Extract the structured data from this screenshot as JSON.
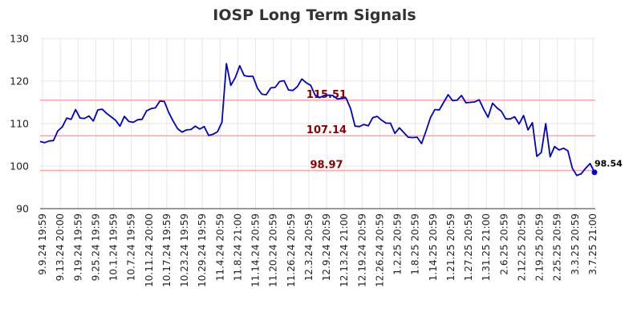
{
  "chart_data": {
    "type": "line",
    "title": "IOSP Long Term Signals",
    "ylim": [
      90,
      130
    ],
    "yticks": [
      90,
      100,
      110,
      120,
      130
    ],
    "grid": true,
    "x_tick_labels": [
      "9.9.24 19:59",
      "9.13.24 20:00",
      "9.19.24 19:59",
      "9.25.24 19:59",
      "10.1.24 19:59",
      "10.7.24 19:59",
      "10.11.24 20:00",
      "10.17.24 19:59",
      "10.23.24 19:59",
      "10.29.24 19:59",
      "11.4.24 20:59",
      "11.8.24 21:00",
      "11.14.24 20:59",
      "11.20.24 20:59",
      "11.26.24 20:59",
      "12.3.24 20:59",
      "12.9.24 20:59",
      "12.13.24 21:00",
      "12.19.24 20:59",
      "12.26.24 20:59",
      "1.2.25 20:59",
      "1.8.25 20:59",
      "1.14.25 20:59",
      "1.21.25 20:59",
      "1.27.25 20:59",
      "1.31.25 21:00",
      "2.6.25 20:59",
      "2.12.25 20:59",
      "2.19.25 20:59",
      "2.25.25 20:59",
      "3.3.25 20:59",
      "3.7.25 21:00"
    ],
    "series": [
      {
        "color": "#0000cc",
        "values": [
          105.8,
          105.5,
          105.9,
          106.0,
          108.3,
          109.2,
          111.3,
          111.0,
          113.3,
          111.3,
          111.2,
          111.8,
          110.6,
          113.2,
          113.4,
          112.4,
          111.6,
          110.8,
          109.4,
          111.7,
          110.5,
          110.3,
          110.9,
          111.0,
          113.0,
          113.5,
          113.7,
          115.3,
          115.2,
          112.6,
          110.6,
          108.8,
          108.0,
          108.5,
          108.6,
          109.4,
          108.7,
          109.3,
          107.2,
          107.5,
          108.1,
          110.3,
          124.1,
          119.0,
          120.8,
          123.6,
          121.3,
          121.1,
          121.1,
          118.3,
          116.9,
          116.8,
          118.4,
          118.5,
          119.9,
          120.1,
          117.9,
          117.8,
          118.7,
          120.5,
          119.6,
          119.0,
          116.7,
          116.1,
          116.6,
          116.7,
          116.6,
          115.8,
          115.9,
          116.0,
          113.5,
          109.4,
          109.3,
          109.8,
          109.5,
          111.4,
          111.7,
          110.8,
          110.1,
          110.1,
          107.7,
          109.0,
          107.9,
          106.8,
          106.7,
          106.8,
          105.3,
          108.2,
          111.4,
          113.3,
          113.2,
          115.0,
          116.8,
          115.4,
          115.5,
          116.6,
          114.9,
          115.0,
          115.1,
          115.6,
          113.4,
          111.5,
          114.8,
          113.7,
          112.9,
          111.1,
          111.1,
          111.6,
          109.9,
          111.9,
          108.5,
          110.2,
          102.3,
          103.2,
          110.0,
          102.2,
          104.6,
          103.8,
          104.2,
          103.6,
          99.5,
          97.8,
          98.2,
          99.5,
          100.6,
          98.54
        ]
      }
    ],
    "signals": [
      {
        "value": 115.51,
        "label": "115.51"
      },
      {
        "value": 107.14,
        "label": "107.14"
      },
      {
        "value": 98.97,
        "label": "98.97"
      }
    ],
    "last_value_label": "98.54",
    "signal_line_color": "#ffaaaa",
    "signal_label_color": "#8b0000",
    "marker_color": "#0000cc"
  }
}
